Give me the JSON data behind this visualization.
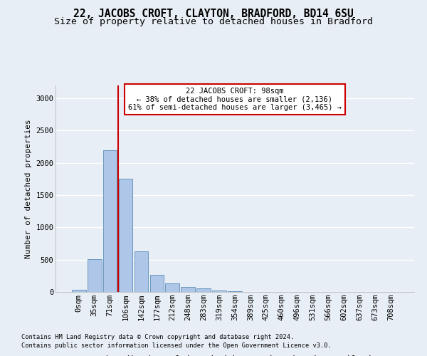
{
  "title1": "22, JACOBS CROFT, CLAYTON, BRADFORD, BD14 6SU",
  "title2": "Size of property relative to detached houses in Bradford",
  "xlabel": "Distribution of detached houses by size in Bradford",
  "ylabel": "Number of detached properties",
  "footnote1": "Contains HM Land Registry data © Crown copyright and database right 2024.",
  "footnote2": "Contains public sector information licensed under the Open Government Licence v3.0.",
  "bar_labels": [
    "0sqm",
    "35sqm",
    "71sqm",
    "106sqm",
    "142sqm",
    "177sqm",
    "212sqm",
    "248sqm",
    "283sqm",
    "319sqm",
    "354sqm",
    "389sqm",
    "425sqm",
    "460sqm",
    "496sqm",
    "531sqm",
    "566sqm",
    "602sqm",
    "637sqm",
    "673sqm",
    "708sqm"
  ],
  "bar_values": [
    30,
    510,
    2200,
    1750,
    630,
    260,
    135,
    80,
    50,
    20,
    10,
    5,
    3,
    2,
    2,
    1,
    1,
    1,
    1,
    1,
    1
  ],
  "bar_color": "#aec6e8",
  "bar_edge_color": "#5b8db8",
  "vline_x": 2.5,
  "vline_color": "#cc0000",
  "annotation_text": "22 JACOBS CROFT: 98sqm\n← 38% of detached houses are smaller (2,136)\n61% of semi-detached houses are larger (3,465) →",
  "annotation_box_color": "#ffffff",
  "annotation_box_edge": "#cc0000",
  "ylim": [
    0,
    3200
  ],
  "yticks": [
    0,
    500,
    1000,
    1500,
    2000,
    2500,
    3000
  ],
  "bg_color": "#e8eef5",
  "plot_bg_color": "#e8eef5",
  "grid_color": "#ffffff",
  "title1_fontsize": 10.5,
  "title2_fontsize": 9.5,
  "xlabel_fontsize": 9,
  "ylabel_fontsize": 8,
  "tick_fontsize": 7.5,
  "annotation_fontsize": 7.5,
  "footnote_fontsize": 6.2
}
